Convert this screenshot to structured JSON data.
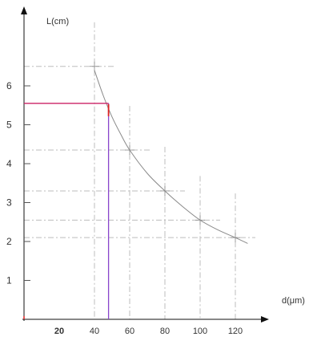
{
  "chart_data": {
    "type": "line",
    "xlabel": "d(μm)",
    "ylabel": "L(cm)",
    "x_tick_labels": [
      {
        "value": 20,
        "label": "20",
        "bold": true
      },
      {
        "value": 40,
        "label": "40",
        "bold": false
      },
      {
        "value": 60,
        "label": "60",
        "bold": false
      },
      {
        "value": 80,
        "label": "80",
        "bold": false
      },
      {
        "value": 100,
        "label": "100",
        "bold": false
      },
      {
        "value": 120,
        "label": "120",
        "bold": false
      }
    ],
    "y_tick_labels": [
      {
        "value": 1,
        "label": "1"
      },
      {
        "value": 2,
        "label": "2"
      },
      {
        "value": 3,
        "label": "3"
      },
      {
        "value": 4,
        "label": "4"
      },
      {
        "value": 5,
        "label": "5"
      },
      {
        "value": 6,
        "label": "6"
      }
    ],
    "xlim": [
      0,
      140
    ],
    "ylim": [
      0,
      8
    ],
    "grid": false,
    "series": [
      {
        "points": [
          {
            "x": 40,
            "y": 6.5
          },
          {
            "x": 60,
            "y": 4.35
          },
          {
            "x": 80,
            "y": 3.3
          },
          {
            "x": 100,
            "y": 2.55
          },
          {
            "x": 120,
            "y": 2.1
          }
        ],
        "curve": [
          {
            "x": 40,
            "y": 6.4
          },
          {
            "x": 45,
            "y": 5.75
          },
          {
            "x": 50,
            "y": 5.2
          },
          {
            "x": 55,
            "y": 4.75
          },
          {
            "x": 60,
            "y": 4.35
          },
          {
            "x": 70,
            "y": 3.75
          },
          {
            "x": 80,
            "y": 3.3
          },
          {
            "x": 90,
            "y": 2.9
          },
          {
            "x": 100,
            "y": 2.55
          },
          {
            "x": 110,
            "y": 2.3
          },
          {
            "x": 120,
            "y": 2.1
          },
          {
            "x": 127,
            "y": 1.95
          }
        ],
        "color": "#8a8a8a"
      }
    ],
    "highlight": {
      "x": 48,
      "y": 5.55,
      "x_line_color": "#8844cc",
      "y_line_color": "#cc2266",
      "origin_mark_color": "#dd2222"
    }
  }
}
